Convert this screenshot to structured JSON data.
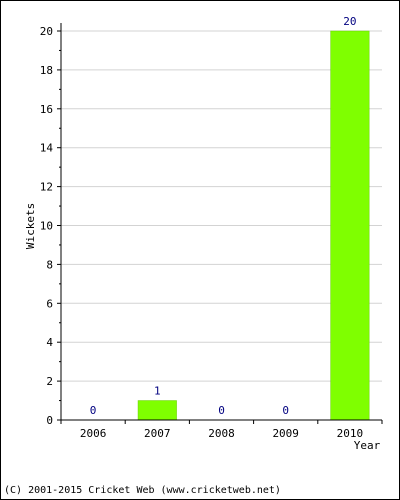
{
  "chart_data": {
    "type": "bar",
    "categories": [
      "2006",
      "2007",
      "2008",
      "2009",
      "2010"
    ],
    "values": [
      0,
      1,
      0,
      0,
      20
    ],
    "data_labels": [
      "0",
      "1",
      "0",
      "0",
      "20"
    ],
    "ylabel": "Wickets",
    "xlabel": "Year",
    "ylim": [
      0,
      20
    ],
    "y_ticks": [
      "0",
      "2",
      "4",
      "6",
      "8",
      "10",
      "12",
      "14",
      "16",
      "18",
      "20"
    ],
    "grid": true,
    "colors": {
      "bar": "#7fff00",
      "bar_edge": "#66cc00",
      "data_label": "#000080",
      "grid": "#d3d3d3",
      "axis": "#000000"
    }
  },
  "footer": "(C) 2001-2015 Cricket Web (www.cricketweb.net)"
}
